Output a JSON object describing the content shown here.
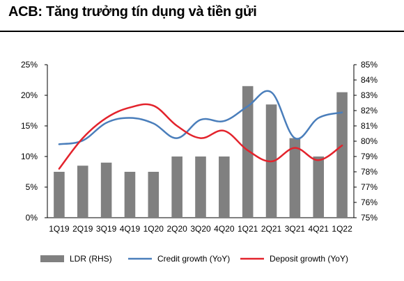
{
  "title": "ACB: Tăng trưởng tín dụng và tiền gửi",
  "chart_data": {
    "type": "bar",
    "categories": [
      "1Q19",
      "2Q19",
      "3Q19",
      "4Q19",
      "1Q20",
      "2Q20",
      "3Q20",
      "4Q20",
      "1Q21",
      "2Q21",
      "3Q21",
      "4Q21",
      "1Q22"
    ],
    "y_left": {
      "min": 0,
      "max": 25,
      "step": 5,
      "tick_labels": [
        "0%",
        "5%",
        "10%",
        "15%",
        "20%",
        "25%"
      ]
    },
    "y_right": {
      "min": 75,
      "max": 85,
      "step": 1,
      "tick_labels": [
        "75%",
        "76%",
        "77%",
        "78%",
        "79%",
        "80%",
        "81%",
        "82%",
        "83%",
        "84%",
        "85%"
      ]
    },
    "grid": false,
    "legend_position": "bottom",
    "series": [
      {
        "name": "LDR (RHS)",
        "kind": "bar",
        "axis": "right",
        "color": "#808080",
        "values": [
          78.0,
          78.4,
          78.6,
          78.0,
          78.0,
          79.0,
          79.0,
          79.0,
          83.6,
          82.4,
          80.2,
          79.0,
          83.2
        ]
      },
      {
        "name": "Credit growth (YoY)",
        "kind": "line",
        "axis": "left",
        "color": "#4a7ebb",
        "values": [
          12.0,
          12.6,
          15.5,
          16.3,
          15.4,
          13.0,
          16.0,
          15.8,
          18.2,
          20.5,
          13.0,
          16.3,
          17.2
        ]
      },
      {
        "name": "Deposit growth (YoY)",
        "kind": "line",
        "axis": "left",
        "color": "#e3232c",
        "values": [
          8.0,
          13.0,
          16.3,
          18.0,
          18.3,
          15.0,
          13.0,
          14.2,
          11.0,
          9.2,
          11.4,
          9.4,
          11.8
        ]
      }
    ]
  }
}
